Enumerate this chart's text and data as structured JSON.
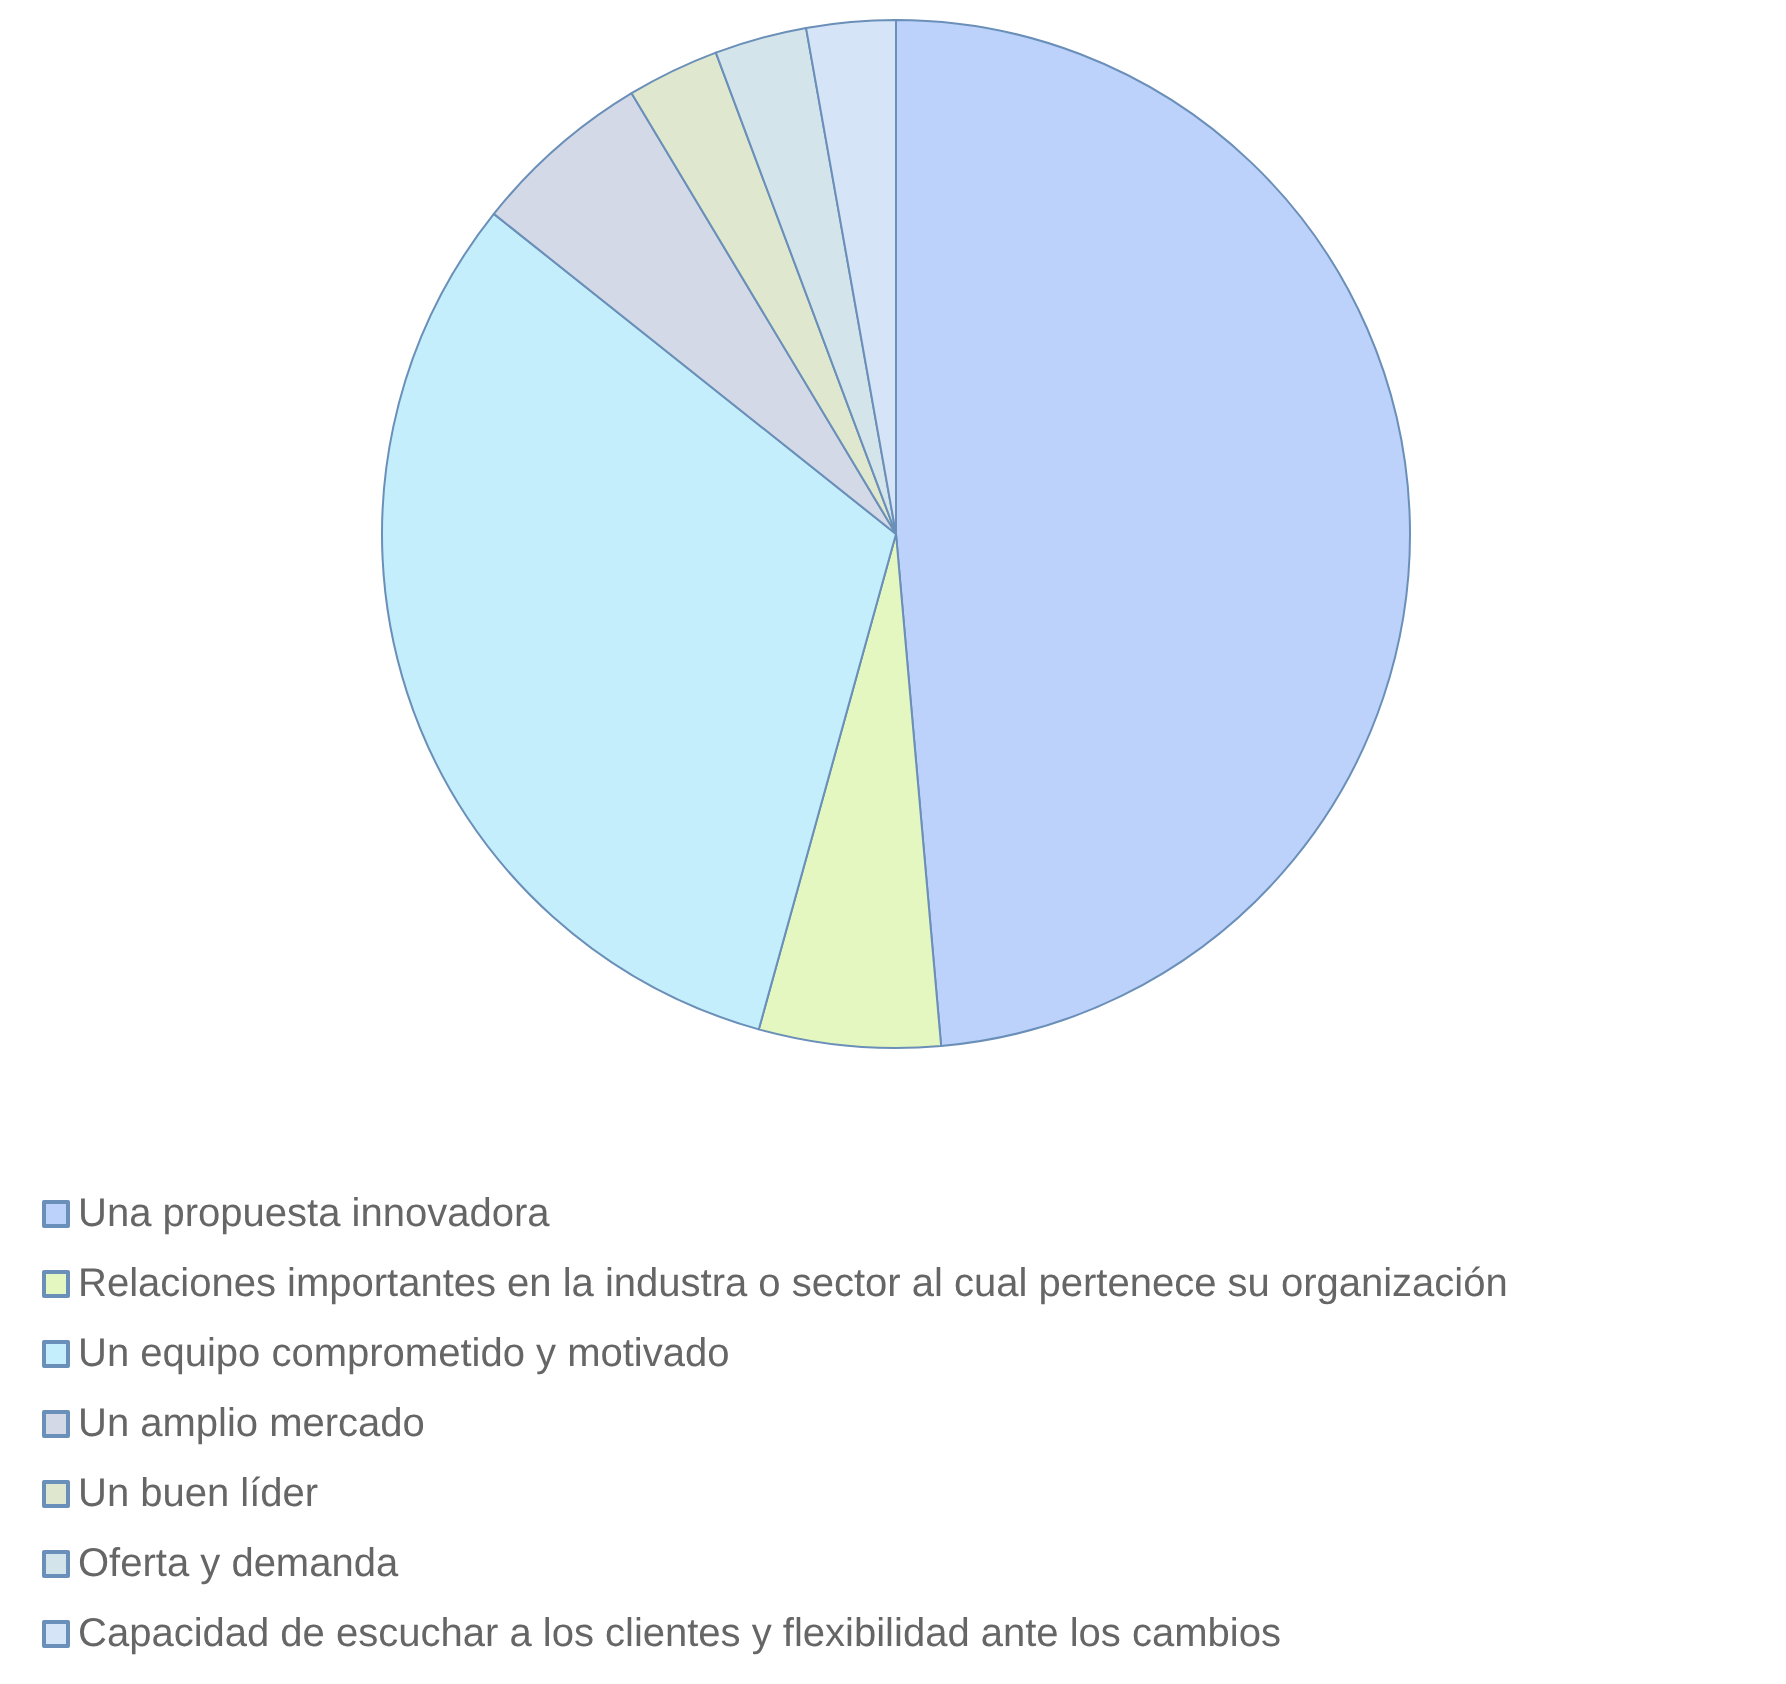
{
  "chart_data": {
    "type": "pie",
    "categories": [
      "Una propuesta innovadora",
      "Relaciones importantes en la industra o sector al cual pertenece su organización",
      "Un equipo comprometido y motivado",
      "Un amplio mercado",
      "Un buen líder",
      "Oferta y demanda",
      "Capacidad de escuchar a los clientes y flexibilidad ante los cambios"
    ],
    "values": [
      48.6,
      5.7,
      31.4,
      5.7,
      2.9,
      2.9,
      2.8
    ],
    "colors": [
      "#bcd2fb",
      "#e4f7c0",
      "#c4eefc",
      "#d3d9e6",
      "#dfe8cf",
      "#d3e4ea",
      "#d6e4f8"
    ],
    "legend": "bottom left"
  }
}
